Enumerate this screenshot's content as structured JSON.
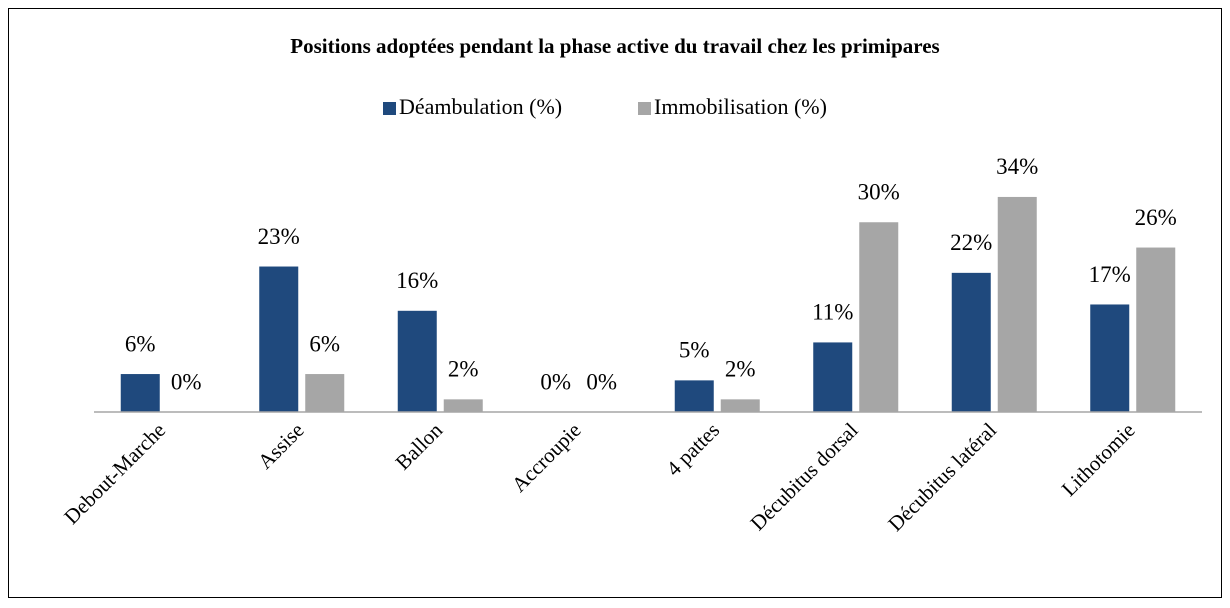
{
  "chart_data": {
    "type": "bar",
    "title": "Positions adoptées pendant la phase active du travail chez les primipares",
    "categories": [
      "Debout-Marche",
      "Assise",
      "Ballon",
      "Accroupie",
      "4 pattes",
      "Décubitus dorsal",
      "Décubitus latéral",
      "Lithotomie"
    ],
    "series": [
      {
        "name": "Déambulation (%)",
        "color": "#1f497d",
        "values": [
          6,
          23,
          16,
          0,
          5,
          11,
          22,
          17
        ],
        "value_labels": [
          "6%",
          "23%",
          "16%",
          "0%",
          "5%",
          "11%",
          "22%",
          "17%"
        ]
      },
      {
        "name": "Immobilisation (%)",
        "color": "#a6a6a6",
        "values": [
          0,
          6,
          2,
          0,
          2,
          30,
          34,
          26
        ],
        "value_labels": [
          "0%",
          "6%",
          "2%",
          "0%",
          "2%",
          "30%",
          "34%",
          "26%"
        ]
      }
    ],
    "ylim": [
      0,
      40
    ],
    "legend": "top"
  }
}
